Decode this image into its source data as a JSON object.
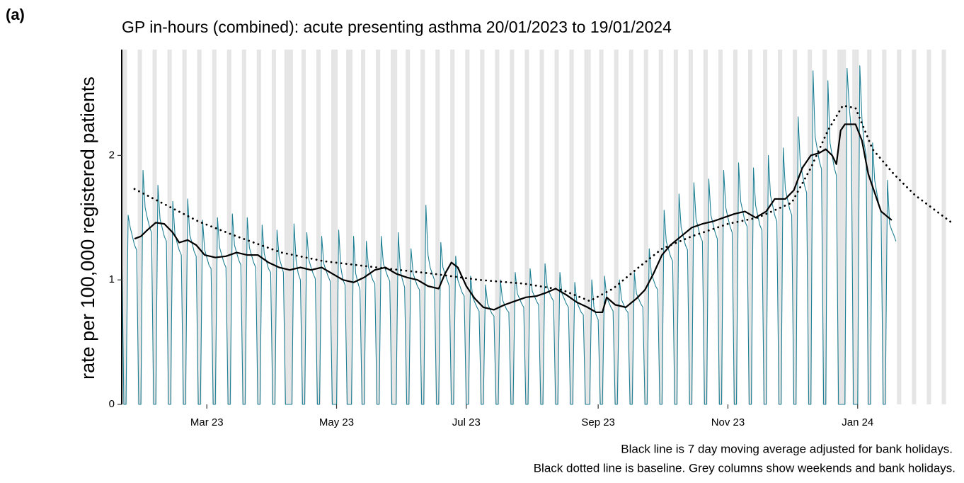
{
  "chart_data": {
    "type": "line",
    "panel_label": "(a)",
    "title": "GP in-hours (combined): acute presenting asthma 20/01/2023 to 19/01/2024",
    "y_label": "rate per 100,000 registered patients",
    "notes": [
      "Black line is 7 day moving average adjusted for bank holidays.",
      "Black dotted line is baseline. Grey columns show weekends and bank holidays."
    ],
    "xlim": [
      "2023-01-20",
      "2024-02-16"
    ],
    "xticks": [
      {
        "value": "2023-03-01",
        "label": "Mar 23"
      },
      {
        "value": "2023-05-01",
        "label": "May 23"
      },
      {
        "value": "2023-07-01",
        "label": "Jul 23"
      },
      {
        "value": "2023-09-01",
        "label": "Sep 23"
      },
      {
        "value": "2023-11-01",
        "label": "Nov 23"
      },
      {
        "value": "2024-01-01",
        "label": "Jan 24"
      }
    ],
    "ylim": [
      0,
      2.85
    ],
    "yticks": [
      0,
      1,
      2
    ],
    "shade_weekends": true,
    "shade_color": "#e5e5e5",
    "bank_holidays": [
      "2023-04-07",
      "2023-04-10",
      "2023-05-01",
      "2023-05-08",
      "2023-05-29",
      "2023-08-28",
      "2023-12-25",
      "2023-12-26",
      "2024-01-01"
    ],
    "x": [
      "2023-01-20",
      "2023-01-21",
      "2023-01-22",
      "2023-01-23",
      "2023-01-24",
      "2023-01-25",
      "2023-01-26",
      "2023-01-27",
      "2023-01-28",
      "2023-01-29",
      "2023-01-30",
      "2023-01-31",
      "2023-02-01",
      "2023-02-02",
      "2023-02-03",
      "2023-02-04",
      "2023-02-05",
      "2023-02-06",
      "2023-02-07",
      "2023-02-08",
      "2023-02-09",
      "2023-02-10",
      "2023-02-11",
      "2023-02-12",
      "2023-02-13",
      "2023-02-14",
      "2023-02-15",
      "2023-02-16",
      "2023-02-17",
      "2023-02-18",
      "2023-02-19",
      "2023-02-20",
      "2023-02-21",
      "2023-02-22",
      "2023-02-23",
      "2023-02-24",
      "2023-02-25",
      "2023-02-26",
      "2023-02-27",
      "2023-02-28",
      "2023-03-01",
      "2023-03-02",
      "2023-03-03",
      "2023-03-04",
      "2023-03-05",
      "2023-03-06",
      "2023-03-07",
      "2023-03-08",
      "2023-03-09",
      "2023-03-10",
      "2023-03-11",
      "2023-03-12",
      "2023-03-13",
      "2023-03-14",
      "2023-03-15",
      "2023-03-16",
      "2023-03-17",
      "2023-03-18",
      "2023-03-19",
      "2023-03-20",
      "2023-03-21",
      "2023-03-22",
      "2023-03-23",
      "2023-03-24",
      "2023-03-25",
      "2023-03-26",
      "2023-03-27",
      "2023-03-28",
      "2023-03-29",
      "2023-03-30",
      "2023-03-31",
      "2023-04-01",
      "2023-04-02",
      "2023-04-03",
      "2023-04-04",
      "2023-04-05",
      "2023-04-06",
      "2023-04-07",
      "2023-04-08",
      "2023-04-09",
      "2023-04-10",
      "2023-04-11",
      "2023-04-12",
      "2023-04-13",
      "2023-04-14",
      "2023-04-15",
      "2023-04-16",
      "2023-04-17",
      "2023-04-18",
      "2023-04-19",
      "2023-04-20",
      "2023-04-21",
      "2023-04-22",
      "2023-04-23",
      "2023-04-24",
      "2023-04-25",
      "2023-04-26",
      "2023-04-27",
      "2023-04-28",
      "2023-04-29",
      "2023-04-30",
      "2023-05-01",
      "2023-05-02",
      "2023-05-03",
      "2023-05-04",
      "2023-05-05",
      "2023-05-06",
      "2023-05-07",
      "2023-05-08",
      "2023-05-09",
      "2023-05-10",
      "2023-05-11",
      "2023-05-12",
      "2023-05-13",
      "2023-05-14",
      "2023-05-15",
      "2023-05-16",
      "2023-05-17",
      "2023-05-18",
      "2023-05-19",
      "2023-05-20",
      "2023-05-21",
      "2023-05-22",
      "2023-05-23",
      "2023-05-24",
      "2023-05-25",
      "2023-05-26",
      "2023-05-27",
      "2023-05-28",
      "2023-05-29",
      "2023-05-30",
      "2023-05-31",
      "2023-06-01",
      "2023-06-02",
      "2023-06-03",
      "2023-06-04",
      "2023-06-05",
      "2023-06-06",
      "2023-06-07",
      "2023-06-08",
      "2023-06-09",
      "2023-06-10",
      "2023-06-11",
      "2023-06-12",
      "2023-06-13",
      "2023-06-14",
      "2023-06-15",
      "2023-06-16",
      "2023-06-17",
      "2023-06-18",
      "2023-06-19",
      "2023-06-20",
      "2023-06-21",
      "2023-06-22",
      "2023-06-23",
      "2023-06-24",
      "2023-06-25",
      "2023-06-26",
      "2023-06-27",
      "2023-06-28",
      "2023-06-29",
      "2023-06-30",
      "2023-07-01",
      "2023-07-02",
      "2023-07-03",
      "2023-07-04",
      "2023-07-05",
      "2023-07-06",
      "2023-07-07",
      "2023-07-08",
      "2023-07-09",
      "2023-07-10",
      "2023-07-11",
      "2023-07-12",
      "2023-07-13",
      "2023-07-14",
      "2023-07-15",
      "2023-07-16",
      "2023-07-17",
      "2023-07-18",
      "2023-07-19",
      "2023-07-20",
      "2023-07-21",
      "2023-07-22",
      "2023-07-23",
      "2023-07-24",
      "2023-07-25",
      "2023-07-26",
      "2023-07-27",
      "2023-07-28",
      "2023-07-29",
      "2023-07-30",
      "2023-07-31",
      "2023-08-01",
      "2023-08-02",
      "2023-08-03",
      "2023-08-04",
      "2023-08-05",
      "2023-08-06",
      "2023-08-07",
      "2023-08-08",
      "2023-08-09",
      "2023-08-10",
      "2023-08-11",
      "2023-08-12",
      "2023-08-13",
      "2023-08-14",
      "2023-08-15",
      "2023-08-16",
      "2023-08-17",
      "2023-08-18",
      "2023-08-19",
      "2023-08-20",
      "2023-08-21",
      "2023-08-22",
      "2023-08-23",
      "2023-08-24",
      "2023-08-25",
      "2023-08-26",
      "2023-08-27",
      "2023-08-28",
      "2023-08-29",
      "2023-08-30",
      "2023-08-31",
      "2023-09-01",
      "2023-09-02",
      "2023-09-03",
      "2023-09-04",
      "2023-09-05",
      "2023-09-06",
      "2023-09-07",
      "2023-09-08",
      "2023-09-09",
      "2023-09-10",
      "2023-09-11",
      "2023-09-12",
      "2023-09-13",
      "2023-09-14",
      "2023-09-15",
      "2023-09-16",
      "2023-09-17",
      "2023-09-18",
      "2023-09-19",
      "2023-09-20",
      "2023-09-21",
      "2023-09-22",
      "2023-09-23",
      "2023-09-24",
      "2023-09-25",
      "2023-09-26",
      "2023-09-27",
      "2023-09-28",
      "2023-09-29",
      "2023-09-30",
      "2023-10-01",
      "2023-10-02",
      "2023-10-03",
      "2023-10-04",
      "2023-10-05",
      "2023-10-06",
      "2023-10-07",
      "2023-10-08",
      "2023-10-09",
      "2023-10-10",
      "2023-10-11",
      "2023-10-12",
      "2023-10-13",
      "2023-10-14",
      "2023-10-15",
      "2023-10-16",
      "2023-10-17",
      "2023-10-18",
      "2023-10-19",
      "2023-10-20",
      "2023-10-21",
      "2023-10-22",
      "2023-10-23",
      "2023-10-24",
      "2023-10-25",
      "2023-10-26",
      "2023-10-27",
      "2023-10-28",
      "2023-10-29",
      "2023-10-30",
      "2023-10-31",
      "2023-11-01",
      "2023-11-02",
      "2023-11-03",
      "2023-11-04",
      "2023-11-05",
      "2023-11-06",
      "2023-11-07",
      "2023-11-08",
      "2023-11-09",
      "2023-11-10",
      "2023-11-11",
      "2023-11-12",
      "2023-11-13",
      "2023-11-14",
      "2023-11-15",
      "2023-11-16",
      "2023-11-17",
      "2023-11-18",
      "2023-11-19",
      "2023-11-20",
      "2023-11-21",
      "2023-11-22",
      "2023-11-23",
      "2023-11-24",
      "2023-11-25",
      "2023-11-26",
      "2023-11-27",
      "2023-11-28",
      "2023-11-29",
      "2023-11-30",
      "2023-12-01",
      "2023-12-02",
      "2023-12-03",
      "2023-12-04",
      "2023-12-05",
      "2023-12-06",
      "2023-12-07",
      "2023-12-08",
      "2023-12-09",
      "2023-12-10",
      "2023-12-11",
      "2023-12-12",
      "2023-12-13",
      "2023-12-14",
      "2023-12-15",
      "2023-12-16",
      "2023-12-17",
      "2023-12-18",
      "2023-12-19",
      "2023-12-20",
      "2023-12-21",
      "2023-12-22",
      "2023-12-23",
      "2023-12-24",
      "2023-12-25",
      "2023-12-26",
      "2023-12-27",
      "2023-12-28",
      "2023-12-29",
      "2023-12-30",
      "2023-12-31",
      "2024-01-01",
      "2024-01-02",
      "2024-01-03",
      "2024-01-04",
      "2024-01-05",
      "2024-01-06",
      "2024-01-07",
      "2024-01-08",
      "2024-01-09",
      "2024-01-10",
      "2024-01-11",
      "2024-01-12",
      "2024-01-13",
      "2024-01-14",
      "2024-01-15",
      "2024-01-16",
      "2024-01-17",
      "2024-01-18",
      "2024-01-19"
    ],
    "series": [
      {
        "color": "#1f7f93",
        "width": 1.1,
        "values": [
          1.3,
          0,
          0,
          1.52,
          1.42,
          1.35,
          1.28,
          1.24,
          0,
          0,
          1.88,
          1.58,
          1.5,
          1.43,
          1.38,
          0,
          0,
          1.76,
          1.49,
          1.42,
          1.35,
          1.31,
          0,
          0,
          1.63,
          1.37,
          1.3,
          1.24,
          1.2,
          0,
          0,
          1.65,
          1.36,
          1.3,
          1.23,
          1.19,
          0,
          0,
          1.48,
          1.24,
          1.18,
          1.12,
          1.09,
          0,
          0,
          1.5,
          1.26,
          1.2,
          1.14,
          1.1,
          0,
          0,
          1.53,
          1.28,
          1.22,
          1.16,
          1.12,
          0,
          0,
          1.5,
          1.26,
          1.2,
          1.14,
          1.1,
          0,
          0,
          1.44,
          1.21,
          1.15,
          1.09,
          1.06,
          0,
          0,
          1.4,
          1.18,
          1.12,
          1.06,
          0,
          0,
          0,
          0,
          1.45,
          1.15,
          1.05,
          1.0,
          0,
          0,
          1.38,
          1.16,
          1.1,
          1.05,
          1.01,
          0,
          0,
          1.35,
          1.13,
          1.08,
          1.03,
          0.99,
          0,
          0,
          0,
          1.4,
          1.1,
          1.0,
          0.96,
          0,
          0,
          0,
          1.35,
          1.05,
          0.98,
          0.92,
          0,
          0,
          1.31,
          1.1,
          1.05,
          1.0,
          0.97,
          0,
          0,
          1.35,
          1.13,
          1.08,
          1.03,
          0.99,
          0,
          0,
          0,
          1.38,
          1.07,
          1.0,
          0.94,
          0,
          0,
          1.25,
          1.05,
          1.0,
          0.95,
          0.92,
          0,
          0,
          1.6,
          1.2,
          1.1,
          1.05,
          1.0,
          0,
          0,
          1.3,
          1.1,
          1.05,
          1.0,
          0.95,
          0,
          0,
          1.19,
          1.0,
          0.95,
          0.9,
          0.87,
          0,
          0,
          1.03,
          0.86,
          0.82,
          0.78,
          0.75,
          0,
          0,
          0.96,
          0.81,
          0.77,
          0.73,
          0.71,
          0,
          0,
          1.0,
          0.84,
          0.8,
          0.76,
          0.74,
          0,
          0,
          1.06,
          0.89,
          0.85,
          0.81,
          0.78,
          0,
          0,
          1.09,
          0.91,
          0.87,
          0.83,
          0.8,
          0,
          0,
          1.13,
          0.95,
          0.9,
          0.86,
          0.83,
          0,
          0,
          1.06,
          0.89,
          0.85,
          0.81,
          0.78,
          0,
          0,
          0.98,
          0.82,
          0.78,
          0.74,
          0.72,
          0,
          0,
          0,
          1.0,
          0.78,
          0.72,
          0.68,
          0,
          0,
          1.03,
          0.86,
          0.82,
          0.78,
          0.75,
          0,
          0,
          1.0,
          0.84,
          0.8,
          0.76,
          0.74,
          0,
          0,
          1.06,
          0.89,
          0.85,
          0.81,
          0.78,
          0,
          0,
          1.25,
          1.05,
          1.0,
          0.95,
          0.92,
          0,
          0,
          1.56,
          1.31,
          1.25,
          1.19,
          1.15,
          0,
          0,
          1.69,
          1.42,
          1.35,
          1.28,
          1.24,
          0,
          0,
          1.78,
          1.49,
          1.42,
          1.35,
          1.31,
          0,
          0,
          1.81,
          1.52,
          1.45,
          1.38,
          1.33,
          0,
          0,
          1.88,
          1.58,
          1.5,
          1.43,
          1.38,
          0,
          0,
          1.94,
          1.63,
          1.55,
          1.47,
          1.43,
          0,
          0,
          1.9,
          1.6,
          1.52,
          1.44,
          1.4,
          0,
          0,
          2.0,
          1.68,
          1.6,
          1.52,
          1.47,
          0,
          0,
          2.06,
          1.73,
          1.65,
          1.57,
          1.52,
          0,
          0,
          2.31,
          1.94,
          1.85,
          1.76,
          1.7,
          0,
          0,
          2.68,
          2.15,
          2.05,
          1.95,
          1.89,
          0,
          0,
          2.6,
          2.1,
          2.0,
          1.9,
          1.84,
          0,
          0,
          0,
          0,
          2.7,
          2.4,
          2.2,
          0,
          0,
          0,
          2.72,
          2.3,
          2.1,
          2.0,
          0,
          0,
          2.1,
          1.8,
          1.7,
          1.6,
          1.55,
          0,
          0,
          1.8,
          1.45,
          1.4,
          1.36,
          1.31
        ]
      },
      {
        "color": "#000000",
        "width": 2.2,
        "x": [
          "2023-01-26",
          "2023-01-29",
          "2023-02-01",
          "2023-02-05",
          "2023-02-09",
          "2023-02-13",
          "2023-02-16",
          "2023-02-20",
          "2023-02-24",
          "2023-02-28",
          "2023-03-05",
          "2023-03-10",
          "2023-03-15",
          "2023-03-20",
          "2023-03-25",
          "2023-03-30",
          "2023-04-04",
          "2023-04-09",
          "2023-04-14",
          "2023-04-19",
          "2023-04-24",
          "2023-04-29",
          "2023-05-04",
          "2023-05-09",
          "2023-05-14",
          "2023-05-19",
          "2023-05-24",
          "2023-05-29",
          "2023-06-03",
          "2023-06-08",
          "2023-06-13",
          "2023-06-18",
          "2023-06-21",
          "2023-06-24",
          "2023-06-27",
          "2023-07-01",
          "2023-07-05",
          "2023-07-09",
          "2023-07-14",
          "2023-07-19",
          "2023-07-24",
          "2023-07-29",
          "2023-08-03",
          "2023-08-08",
          "2023-08-12",
          "2023-08-17",
          "2023-08-22",
          "2023-08-27",
          "2023-08-31",
          "2023-09-03",
          "2023-09-05",
          "2023-09-09",
          "2023-09-14",
          "2023-09-19",
          "2023-09-23",
          "2023-09-27",
          "2023-10-01",
          "2023-10-05",
          "2023-10-10",
          "2023-10-15",
          "2023-10-20",
          "2023-10-25",
          "2023-10-30",
          "2023-11-04",
          "2023-11-09",
          "2023-11-14",
          "2023-11-19",
          "2023-11-23",
          "2023-11-28",
          "2023-12-02",
          "2023-12-06",
          "2023-12-10",
          "2023-12-14",
          "2023-12-17",
          "2023-12-20",
          "2023-12-22",
          "2023-12-24",
          "2023-12-26",
          "2023-12-31",
          "2024-01-03",
          "2024-01-06",
          "2024-01-09",
          "2024-01-12",
          "2024-01-17"
        ],
        "values": [
          1.33,
          1.35,
          1.4,
          1.46,
          1.45,
          1.38,
          1.3,
          1.32,
          1.28,
          1.2,
          1.18,
          1.19,
          1.22,
          1.2,
          1.2,
          1.14,
          1.1,
          1.08,
          1.1,
          1.08,
          1.1,
          1.05,
          1.0,
          0.98,
          1.02,
          1.08,
          1.1,
          1.05,
          1.02,
          1.0,
          0.95,
          0.93,
          1.05,
          1.14,
          1.1,
          0.95,
          0.85,
          0.78,
          0.76,
          0.8,
          0.83,
          0.86,
          0.87,
          0.9,
          0.93,
          0.88,
          0.82,
          0.78,
          0.74,
          0.74,
          0.86,
          0.8,
          0.78,
          0.85,
          0.92,
          1.05,
          1.2,
          1.28,
          1.35,
          1.42,
          1.45,
          1.47,
          1.5,
          1.53,
          1.55,
          1.5,
          1.55,
          1.65,
          1.65,
          1.72,
          1.9,
          2.0,
          2.02,
          2.05,
          2.0,
          1.93,
          2.2,
          2.25,
          2.25,
          2.12,
          1.85,
          1.7,
          1.55,
          1.48
        ]
      },
      {
        "color": "#000000",
        "width": 2.2,
        "dotted": true,
        "x": [
          "2023-01-26",
          "2023-02-10",
          "2023-02-25",
          "2023-03-15",
          "2023-04-05",
          "2023-04-25",
          "2023-05-20",
          "2023-06-15",
          "2023-07-07",
          "2023-07-28",
          "2023-08-15",
          "2023-08-28",
          "2023-09-08",
          "2023-09-20",
          "2023-10-01",
          "2023-10-15",
          "2023-11-01",
          "2023-11-15",
          "2023-12-01",
          "2023-12-10",
          "2023-12-18",
          "2023-12-25",
          "2023-12-31",
          "2024-01-08",
          "2024-01-18",
          "2024-01-28",
          "2024-02-15"
        ],
        "values": [
          1.73,
          1.6,
          1.47,
          1.35,
          1.22,
          1.15,
          1.1,
          1.05,
          1.0,
          0.97,
          0.92,
          0.83,
          0.93,
          1.1,
          1.25,
          1.35,
          1.45,
          1.5,
          1.62,
          1.9,
          2.2,
          2.4,
          2.38,
          2.05,
          1.85,
          1.68,
          1.45
        ]
      }
    ]
  }
}
